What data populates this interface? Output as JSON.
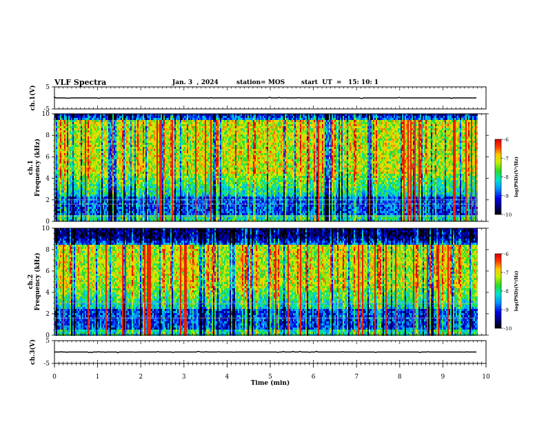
{
  "header": {
    "title": "VLF Spectra",
    "date": "Jan. 3  , 2024",
    "station": "station= MOS",
    "start": "start  UT  =   15: 10: 1"
  },
  "chart_data": [
    {
      "type": "line",
      "name": "ch1-waveform",
      "ylabel": "ch.1(V)",
      "ylim": [
        -5,
        5
      ],
      "yticks": [
        5,
        -5
      ],
      "xlim": [
        0,
        10
      ],
      "series": [
        {
          "values_note": "flat trace",
          "x": [
            0,
            9.8
          ],
          "y": [
            0,
            0
          ]
        }
      ],
      "line_color": "#000000"
    },
    {
      "type": "heatmap",
      "name": "ch1-spectrogram",
      "ylabel": "ch.1\nFrequency (kHz)",
      "xlim": [
        0,
        10
      ],
      "ylim": [
        0,
        10
      ],
      "yticks": [
        0,
        2,
        4,
        6,
        8,
        10
      ],
      "data_extent_x": [
        0,
        9.8
      ],
      "intense_band_khz": [
        4.5,
        9
      ],
      "intense_band_max_khz": 9,
      "horizontal_lines_khz": [
        0.5,
        1.6,
        2.0
      ],
      "colorbar": {
        "label": "log(PSD)(V²/Hz)",
        "range": [
          -10,
          -6
        ],
        "ticks": [
          -6,
          -7,
          -8,
          -9,
          -10
        ]
      }
    },
    {
      "type": "heatmap",
      "name": "ch2-spectrogram",
      "ylabel": "ch.2\nFrequency (kHz)",
      "xlim": [
        0,
        10
      ],
      "ylim": [
        0,
        10
      ],
      "yticks": [
        0,
        2,
        4,
        6,
        8,
        10
      ],
      "data_extent_x": [
        0,
        9.8
      ],
      "intense_band_khz": [
        4.5,
        8
      ],
      "intense_band_max_khz": 8,
      "horizontal_lines_khz": [
        1.6,
        3.0
      ],
      "colorbar": {
        "label": "log(PSD)(V²/Hz)",
        "range": [
          -10,
          -6
        ],
        "ticks": [
          -6,
          -7,
          -8,
          -9,
          -10
        ]
      }
    },
    {
      "type": "line",
      "name": "ch3-waveform",
      "ylabel": "ch.3(V)",
      "ylim": [
        -5,
        5
      ],
      "yticks": [
        5,
        -5
      ],
      "xlim": [
        0,
        10
      ],
      "xlabel": "Time  (min)",
      "xticks": [
        0,
        1,
        2,
        3,
        4,
        5,
        6,
        7,
        8,
        9,
        10
      ],
      "series": [
        {
          "values_note": "flat trace",
          "x": [
            0,
            9.8
          ],
          "y": [
            0,
            0
          ]
        }
      ],
      "line_color": "#000000"
    }
  ]
}
